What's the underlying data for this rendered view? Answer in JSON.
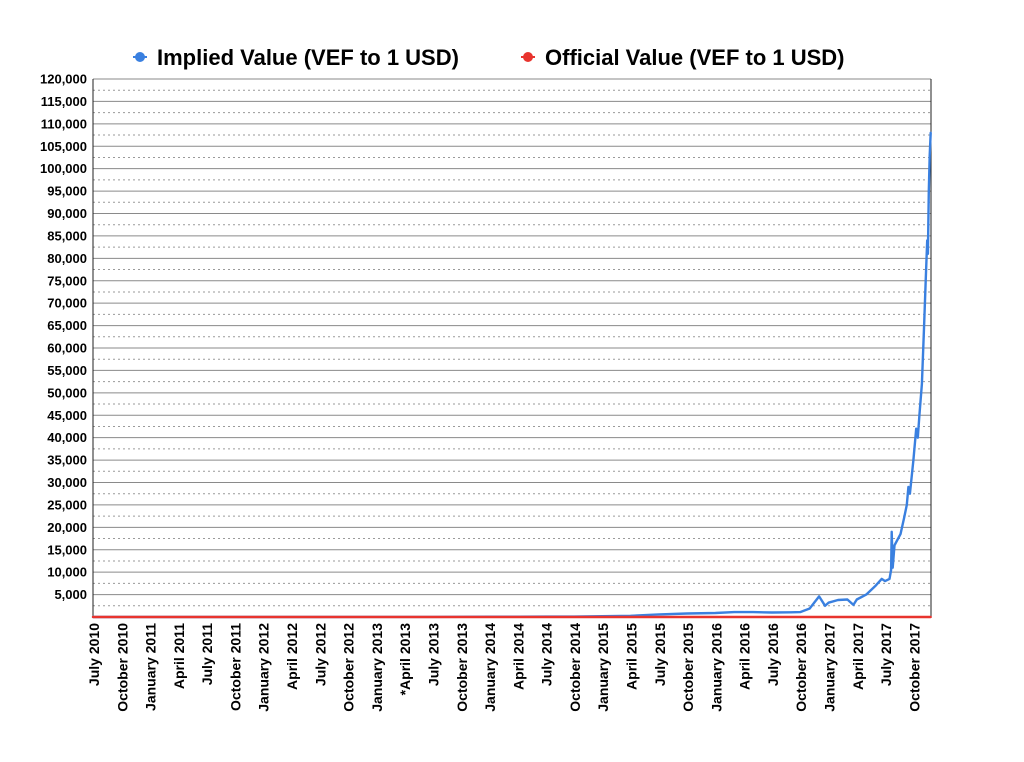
{
  "chart_data": {
    "type": "line",
    "title": "",
    "xlabel": "",
    "ylabel": "",
    "legend_position": "top-center",
    "grid": true,
    "ylim": [
      0,
      120000
    ],
    "y_ticks": [
      5000,
      10000,
      15000,
      20000,
      25000,
      30000,
      35000,
      40000,
      45000,
      50000,
      55000,
      60000,
      65000,
      70000,
      75000,
      80000,
      85000,
      90000,
      95000,
      100000,
      105000,
      110000,
      115000,
      120000
    ],
    "y_tick_labels": [
      "5,000",
      "10,000",
      "15,000",
      "20,000",
      "25,000",
      "30,000",
      "35,000",
      "40,000",
      "45,000",
      "50,000",
      "55,000",
      "60,000",
      "65,000",
      "70,000",
      "75,000",
      "80,000",
      "85,000",
      "90,000",
      "95,000",
      "100,000",
      "105,000",
      "110,000",
      "115,000",
      "120,000"
    ],
    "x_tick_labels": [
      "July 2010",
      "October 2010",
      "January 2011",
      "April 2011",
      "July 2011",
      "October 2011",
      "January 2012",
      "April 2012",
      "July 2012",
      "October 2012",
      "January 2013",
      "*April 2013",
      "July 2013",
      "October 2013",
      "January 2014",
      "April 2014",
      "July 2014",
      "October 2014",
      "January 2015",
      "April 2015",
      "July 2015",
      "October 2015",
      "January 2016",
      "April 2016",
      "July 2016",
      "October 2016",
      "January 2017",
      "April 2017",
      "July 2017",
      "October 2017"
    ],
    "x_tick_dates": [
      "2010-07",
      "2010-10",
      "2011-01",
      "2011-04",
      "2011-07",
      "2011-10",
      "2012-01",
      "2012-04",
      "2012-07",
      "2012-10",
      "2013-01",
      "2013-04",
      "2013-07",
      "2013-10",
      "2014-01",
      "2014-04",
      "2014-07",
      "2014-10",
      "2015-01",
      "2015-04",
      "2015-07",
      "2015-10",
      "2016-01",
      "2016-04",
      "2016-07",
      "2016-10",
      "2017-01",
      "2017-04",
      "2017-07",
      "2017-10"
    ],
    "series": [
      {
        "name": "Implied Value (VEF to 1 USD)",
        "color": "#3a80e0",
        "points": [
          [
            "2010-07",
            8
          ],
          [
            "2011-01",
            9
          ],
          [
            "2011-07",
            10
          ],
          [
            "2012-01",
            10
          ],
          [
            "2012-07",
            11
          ],
          [
            "2013-01",
            18
          ],
          [
            "2013-04",
            22
          ],
          [
            "2013-07",
            30
          ],
          [
            "2013-10",
            40
          ],
          [
            "2014-01",
            62
          ],
          [
            "2014-04",
            65
          ],
          [
            "2014-07",
            80
          ],
          [
            "2014-10",
            100
          ],
          [
            "2015-01",
            170
          ],
          [
            "2015-04",
            260
          ],
          [
            "2015-07",
            580
          ],
          [
            "2015-10",
            780
          ],
          [
            "2016-01",
            900
          ],
          [
            "2016-03",
            1100
          ],
          [
            "2016-05",
            1100
          ],
          [
            "2016-07",
            1000
          ],
          [
            "2016-09",
            1050
          ],
          [
            "2016-10",
            1100
          ],
          [
            "2016-11",
            1900
          ],
          [
            "2016-12",
            4600
          ],
          [
            "2016-12-20",
            2500
          ],
          [
            "2017-01",
            3200
          ],
          [
            "2017-02",
            3800
          ],
          [
            "2017-03",
            3900
          ],
          [
            "2017-03-20",
            2700
          ],
          [
            "2017-04",
            3900
          ],
          [
            "2017-05",
            5000
          ],
          [
            "2017-06",
            7000
          ],
          [
            "2017-06-20",
            8500
          ],
          [
            "2017-07",
            8000
          ],
          [
            "2017-07-15",
            8500
          ],
          [
            "2017-07-20",
            10500
          ],
          [
            "2017-07-22",
            19000
          ],
          [
            "2017-07-25",
            11000
          ],
          [
            "2017-08",
            16000
          ],
          [
            "2017-08-20",
            18500
          ],
          [
            "2017-09",
            22000
          ],
          [
            "2017-09-10",
            25000
          ],
          [
            "2017-09-15",
            29000
          ],
          [
            "2017-09-20",
            27500
          ],
          [
            "2017-10",
            35000
          ],
          [
            "2017-10-10",
            42000
          ],
          [
            "2017-10-15",
            40000
          ],
          [
            "2017-10-20",
            45000
          ],
          [
            "2017-10-28",
            52000
          ],
          [
            "2017-11-05",
            65000
          ],
          [
            "2017-11-10",
            75000
          ],
          [
            "2017-11-15",
            84000
          ],
          [
            "2017-11-17",
            81000
          ],
          [
            "2017-11-20",
            95000
          ],
          [
            "2017-11-23",
            103000
          ],
          [
            "2017-11-26",
            108000
          ]
        ]
      },
      {
        "name": "Official Value (VEF to 1 USD)",
        "color": "#e8342e",
        "points": [
          [
            "2010-07",
            4.3
          ],
          [
            "2013-02",
            6.3
          ],
          [
            "2014-03",
            6.3
          ],
          [
            "2015-01",
            6.3
          ],
          [
            "2016-03",
            10
          ],
          [
            "2017-11-26",
            10
          ]
        ]
      }
    ]
  }
}
